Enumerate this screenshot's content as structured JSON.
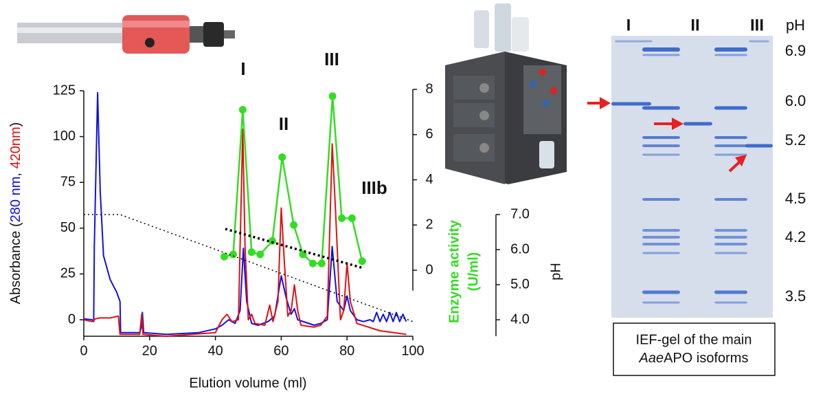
{
  "chart_data": {
    "type": "line",
    "annotations": [
      "I",
      "II",
      "III",
      "IIIb"
    ],
    "xlabel": "Elution volume (ml)",
    "ylabel_prefix": "Absorbance (",
    "ylabel_sep": ", ",
    "ylabel_suffix": ")",
    "y2label": [
      "Enzyme activity",
      "(U/ml)"
    ],
    "y3label": "pH",
    "xlim": [
      0,
      100
    ],
    "xticks": [
      0,
      20,
      40,
      60,
      80,
      100
    ],
    "ylim": [
      -9,
      125
    ],
    "yticks": [
      0,
      25,
      50,
      75,
      100,
      125
    ],
    "y2lim": [
      -2.92,
      8
    ],
    "y2ticks": [
      0,
      2,
      4,
      6,
      8
    ],
    "y3lim": [
      3.53,
      7.0
    ],
    "y3ticks": [
      {
        "value": 4,
        "label": "4.0"
      },
      {
        "value": 5,
        "label": "5.0"
      },
      {
        "value": 6,
        "label": "6.0"
      },
      {
        "value": 7,
        "label": "7.0"
      }
    ],
    "series": [
      {
        "name": "280 nm",
        "color": "#1010e0",
        "x": [
          0,
          2.5,
          3.0,
          3.2,
          4.2,
          5.0,
          6,
          8,
          10,
          11,
          11.2,
          17,
          17.5,
          17.8,
          18.2,
          25,
          35,
          40,
          42,
          44,
          46,
          47.5,
          48.5,
          49.5,
          51,
          53,
          56,
          58,
          60,
          61.5,
          63,
          64,
          65,
          70,
          72,
          74,
          75.5,
          77,
          79,
          80,
          81,
          83,
          85,
          87,
          88,
          89,
          90,
          91,
          92,
          93,
          94,
          95,
          96,
          97,
          98
        ],
        "values": [
          0.5,
          0,
          -1,
          40,
          124,
          70,
          35,
          22,
          15,
          10,
          -7,
          -7,
          -4,
          4,
          -7,
          -8,
          -7,
          -5,
          -3,
          0,
          -2,
          5,
          39,
          10,
          -2,
          -3,
          -1,
          2,
          24,
          12,
          3,
          6,
          0,
          -3,
          -2,
          0,
          40,
          10,
          5,
          13,
          5,
          0,
          -1,
          0,
          -1,
          4,
          -1,
          3,
          -1,
          4,
          -1,
          4,
          -1,
          3,
          -1
        ]
      },
      {
        "name": "420nm",
        "color": "#e01010",
        "x": [
          0,
          2.5,
          3.5,
          5,
          8,
          10.5,
          11,
          17,
          17.6,
          18,
          25,
          40,
          42,
          43.5,
          45,
          47,
          48.3,
          49,
          50,
          51,
          52,
          55,
          56.5,
          57.5,
          59,
          60,
          61,
          62,
          63,
          64,
          65,
          66,
          70,
          72,
          74,
          75.5,
          76.5,
          78,
          79,
          80,
          81,
          83,
          90,
          98
        ],
        "values": [
          0,
          -1,
          0.5,
          1,
          1,
          2,
          -8,
          -8,
          3,
          -8,
          -9,
          -7,
          0,
          3,
          -1,
          0,
          104,
          40,
          0,
          3,
          -2,
          -3,
          8,
          -1,
          10,
          61,
          30,
          2,
          5,
          19,
          5,
          -3,
          -4,
          -3,
          2,
          96,
          60,
          0,
          5,
          31,
          10,
          -2,
          -6,
          -8
        ]
      },
      {
        "color": "#33dd22",
        "axis": "y2",
        "markers": true,
        "x": [
          42.7,
          45.4,
          48.3,
          51,
          53.6,
          57.3,
          60.3,
          63.8,
          66.6,
          69.6,
          72.3,
          75.6,
          78.4,
          81.5,
          84.6
        ],
        "values": [
          0.6,
          0.7,
          7.1,
          0.8,
          0.7,
          1.3,
          5.0,
          2.0,
          0.7,
          0.3,
          0.3,
          7.7,
          2.3,
          2.3,
          0.4
        ]
      },
      {
        "color": "#000000",
        "axis": "y3",
        "style": "dotted",
        "x": [
          0,
          11,
          100
        ],
        "values": [
          7.0,
          7.0,
          3.95
        ]
      },
      {
        "color": "#000000",
        "axis": "y3",
        "style": "dashed-thick",
        "x": [
          43,
          85
        ],
        "values": [
          6.59,
          5.47
        ]
      }
    ]
  },
  "gel": {
    "lane_labels": [
      "I",
      "II",
      "III"
    ],
    "ph_header": "pH",
    "ph_labels": [
      "6.9",
      "6.0",
      "5.2",
      "4.5",
      "4.2",
      "3.5"
    ],
    "caption": [
      "IEF-gel of the main",
      "Aae",
      "APO isoforms"
    ]
  }
}
